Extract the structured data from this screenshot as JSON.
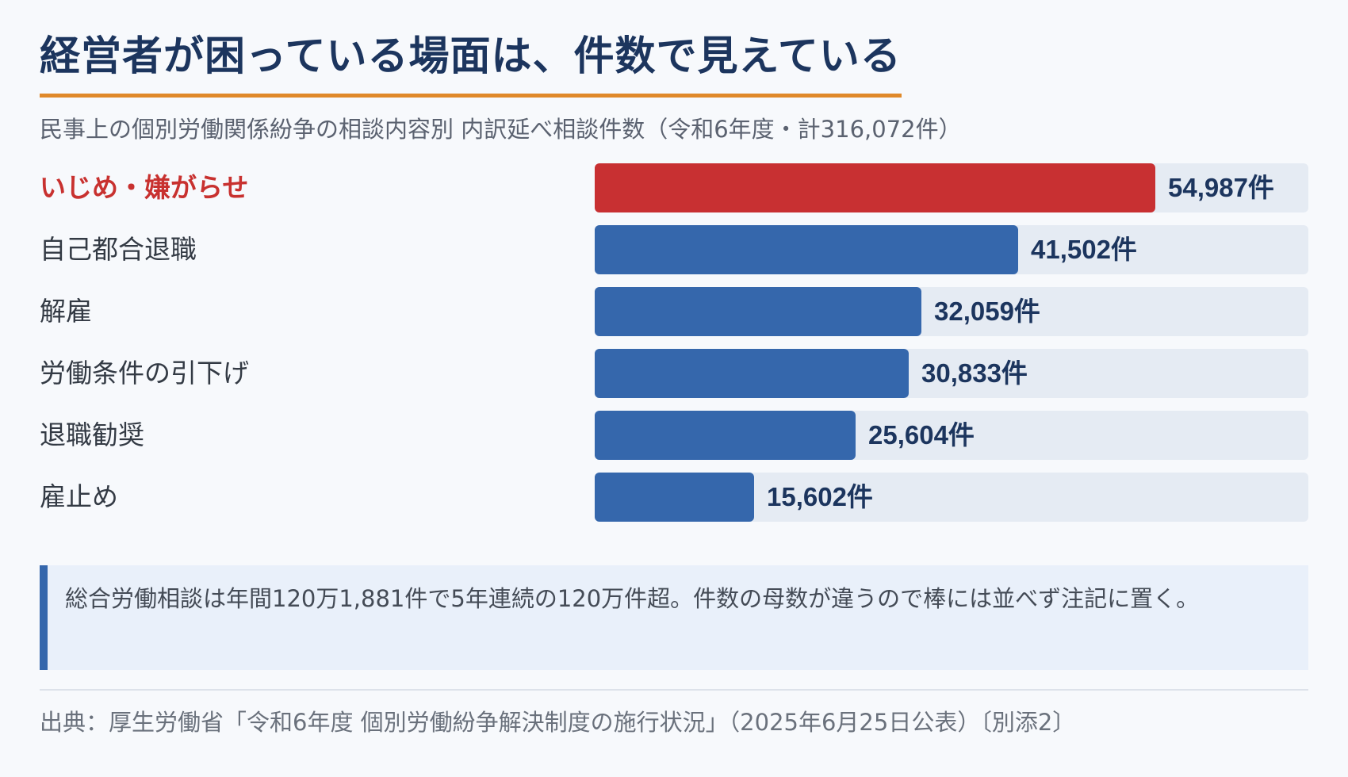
{
  "title": "経営者が困っている場面は、件数で見えている",
  "subtitle": "民事上の個別労働関係紛争の相談内容別 内訳延べ相談件数（令和6年度・計316,072件）",
  "colors": {
    "highlight": "#c83032",
    "bar": "#3567ac",
    "track": "#e5ebf3",
    "title": "#1c355e",
    "accent_underline": "#e0892a"
  },
  "chart_data": {
    "type": "bar",
    "orientation": "horizontal",
    "title": "民事上の個別労働関係紛争の相談内容別 内訳延べ相談件数（令和6年度・計316,072件）",
    "categories": [
      "いじめ・嫌がらせ",
      "自己都合退職",
      "解雇",
      "労働条件の引下げ",
      "退職勧奨",
      "雇止め"
    ],
    "values": [
      54987,
      41502,
      32059,
      30833,
      25604,
      15602
    ],
    "value_labels": [
      "54,987件",
      "41,502件",
      "32,059件",
      "30,833件",
      "25,604件",
      "15,602件"
    ],
    "unit": "件",
    "highlight_index": 0,
    "xlim": [
      0,
      70000
    ],
    "grid": false,
    "legend": "none"
  },
  "note": "総合労働相談は年間120万1,881件で5年連続の120万件超。件数の母数が違うので棒には並べず注記に置く。",
  "source": "出典：厚生労働省「令和6年度 個別労働紛争解決制度の施行状況」（2025年6月25日公表）〔別添2〕"
}
